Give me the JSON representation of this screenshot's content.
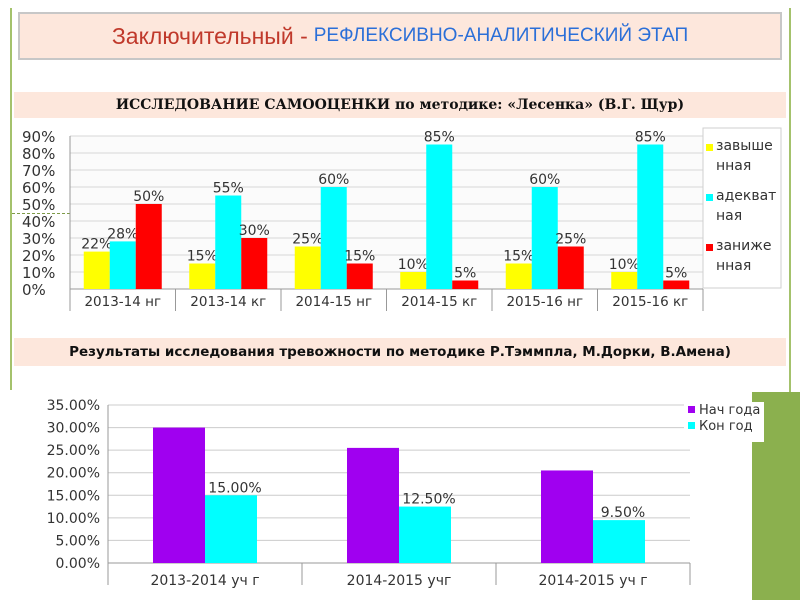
{
  "header": {
    "title_main": "Заключительный -",
    "title_sub": "РЕФЛЕКСИВНО-АНАЛИТИЧЕСКИЙ ЭТАП"
  },
  "section1_title": "ИССЛЕДОВАНИЕ САМООЦЕНКИ по методике: «Лесенка» (В.Г. Щур)",
  "section2_title": "Результаты  исследования  тревожности  по методике Р.Тэммпла, М.Дорки, В.Амена)",
  "colors": {
    "yellow": "#ffff00",
    "cyan": "#00ffff",
    "red": "#ff0000",
    "purple": "#a000f0"
  },
  "chart_data": [
    {
      "type": "bar",
      "categories": [
        "2013-14 нг",
        "2013-14 кг",
        "2014-15 нг",
        "2014-15 кг",
        "2015-16 нг",
        "2015-16 кг"
      ],
      "series": [
        {
          "name": "завышенная",
          "legend_lines": [
            "завыше",
            "нная"
          ],
          "color": "#ffff00",
          "values": [
            22,
            15,
            25,
            10,
            15,
            10
          ],
          "labels": [
            "22%",
            "15%",
            "25%",
            "10%",
            "15%",
            "10%"
          ]
        },
        {
          "name": "адекватная",
          "legend_lines": [
            "адекват",
            "ная"
          ],
          "color": "#00ffff",
          "values": [
            28,
            55,
            60,
            85,
            60,
            85
          ],
          "labels": [
            "28%",
            "55%",
            "60%",
            "85%",
            "60%",
            "85%"
          ]
        },
        {
          "name": "заниженная",
          "legend_lines": [
            "занижe",
            "нная"
          ],
          "color": "#ff0000",
          "values": [
            50,
            30,
            15,
            5,
            25,
            5
          ],
          "labels": [
            "50%",
            "30%",
            "15%",
            "5%",
            "25%",
            "5%"
          ]
        }
      ],
      "yticks": [
        "90%",
        "80%",
        "70%",
        "60%",
        "50%",
        "40%",
        "30%",
        "20%",
        "10%",
        "0%"
      ],
      "ylim": [
        0,
        90
      ],
      "legend": "right",
      "grid": true
    },
    {
      "type": "bar",
      "categories": [
        "2013-2014 уч г",
        "2014-2015 учг",
        "2014-2015 уч г"
      ],
      "series": [
        {
          "name": "Нач года",
          "color": "#a000f0",
          "values": [
            30,
            25.5,
            20.5
          ],
          "labels": [
            "",
            "",
            ""
          ]
        },
        {
          "name": "Кон год",
          "color": "#00ffff",
          "values": [
            15,
            12.5,
            9.5
          ],
          "labels": [
            "15.00%",
            "12.50%",
            "9.50%"
          ]
        }
      ],
      "yticks": [
        "35.00%",
        "30.00%",
        "25.00%",
        "20.00%",
        "15.00%",
        "10.00%",
        "5.00%",
        "0.00%"
      ],
      "ylim": [
        0,
        35
      ],
      "legend": "top-right",
      "grid": true
    }
  ]
}
